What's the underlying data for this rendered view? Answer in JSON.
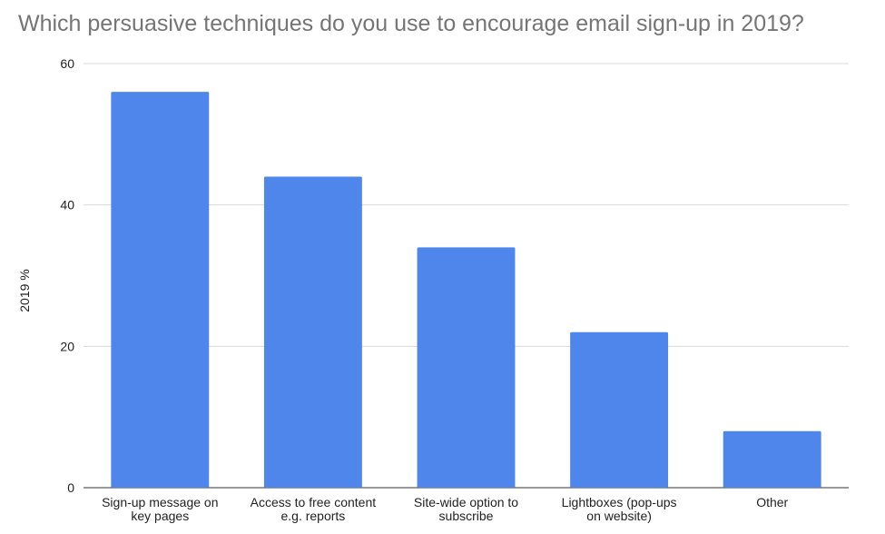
{
  "chart_data": {
    "type": "bar",
    "title": "Which persuasive techniques do you use to encourage email sign-up in 2019?",
    "xlabel": "",
    "ylabel": "2019 %",
    "categories": [
      [
        "Sign-up message on",
        "key pages"
      ],
      [
        "Access to free content",
        "e.g. reports"
      ],
      [
        "Site-wide option to",
        "subscribe"
      ],
      [
        "Lightboxes (pop-ups",
        "on website)"
      ],
      [
        "Other"
      ]
    ],
    "values": [
      56,
      44,
      34,
      22,
      8
    ],
    "ylim": [
      0,
      60
    ],
    "yticks": [
      "0",
      "20",
      "40",
      "60"
    ],
    "grid": true,
    "legend": "none",
    "bar_color": "#4f86ec"
  }
}
